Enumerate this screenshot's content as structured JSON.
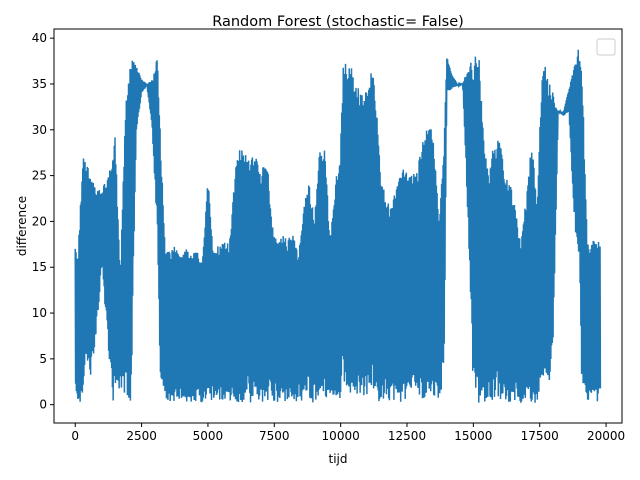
{
  "chart_data": {
    "type": "line",
    "title": "Random Forest (stochastic= False)",
    "xlabel": "tijd",
    "ylabel": "difference",
    "xlim": [
      -800,
      20600
    ],
    "ylim": [
      -2,
      41
    ],
    "xticks": [
      0,
      2500,
      5000,
      7500,
      10000,
      12500,
      15000,
      17500,
      20000
    ],
    "xtick_labels": [
      "0",
      "2500",
      "5000",
      "7500",
      "10000",
      "12500",
      "15000",
      "17500",
      "20000"
    ],
    "yticks": [
      0,
      5,
      10,
      15,
      20,
      25,
      30,
      35,
      40
    ],
    "ytick_labels": [
      "0",
      "5",
      "10",
      "15",
      "20",
      "25",
      "30",
      "35",
      "40"
    ],
    "grid": false,
    "legend": "upper right (empty)",
    "series_color": "#1f77b4",
    "series": [
      {
        "envelope_x": [
          0,
          100,
          300,
          400,
          600,
          800,
          1000,
          1200,
          1400,
          1500,
          1700,
          1900,
          2100,
          2300,
          2500,
          2700,
          2900,
          3100,
          3200,
          3400,
          3600,
          3800,
          4000,
          4200,
          4400,
          4600,
          4800,
          5000,
          5200,
          5400,
          5600,
          5800,
          6000,
          6200,
          6400,
          6600,
          6800,
          7000,
          7200,
          7400,
          7600,
          7800,
          8000,
          8200,
          8400,
          8600,
          8800,
          9000,
          9200,
          9400,
          9600,
          9800,
          10000,
          10100,
          10300,
          10500,
          10700,
          10900,
          11100,
          11300,
          11500,
          11700,
          11900,
          12100,
          12300,
          12500,
          12700,
          12900,
          13100,
          13300,
          13500,
          13700,
          13900,
          14000,
          14200,
          14400,
          14600,
          14800,
          15000,
          15200,
          15400,
          15600,
          15800,
          16000,
          16200,
          16400,
          16600,
          16800,
          17000,
          17200,
          17400,
          17600,
          17800,
          18000,
          18200,
          18400,
          18600,
          18800,
          19000,
          19100,
          19300,
          19500,
          19700,
          19800
        ],
        "envelope_high": [
          17,
          16,
          28.5,
          27,
          25,
          23.5,
          23.5,
          25,
          28,
          30,
          14,
          33,
          38,
          37,
          35.5,
          35,
          35.5,
          38,
          30,
          17,
          17,
          17.5,
          16.5,
          17,
          16.5,
          17,
          16,
          25,
          16.5,
          17.5,
          18,
          17.5,
          25,
          28.5,
          28,
          27.5,
          27,
          26,
          28,
          20.5,
          18,
          18.5,
          18,
          19,
          16.5,
          21.5,
          25,
          20,
          28,
          28.5,
          18,
          24,
          28.5,
          37.5,
          38,
          36,
          34.5,
          33.5,
          36.5,
          35.5,
          26,
          22,
          22,
          24.5,
          26,
          25.5,
          25.5,
          26,
          29,
          31,
          30,
          20,
          29.5,
          38,
          36,
          35,
          35,
          37,
          38,
          38.5,
          28.5,
          25.5,
          29,
          29,
          25.5,
          24,
          21,
          18,
          23,
          29,
          21.5,
          38,
          36,
          34,
          32,
          32,
          34.5,
          37,
          39.5,
          36,
          17.5,
          18,
          18,
          17.5
        ],
        "envelope_low": [
          0.5,
          0.3,
          0.3,
          4,
          3,
          8,
          15,
          8,
          0.2,
          0.3,
          2,
          0.3,
          0.1,
          29.5,
          34,
          34.8,
          30,
          18,
          2,
          0.5,
          0.3,
          0.4,
          0.2,
          0.3,
          0.2,
          0.3,
          0.2,
          0.2,
          0.3,
          0.2,
          0.1,
          0.2,
          0.1,
          0.2,
          0.3,
          0.2,
          0.4,
          0.3,
          0.2,
          0.3,
          0.2,
          0.1,
          0.2,
          0.3,
          0.4,
          0.2,
          0.3,
          0.2,
          0.3,
          0.5,
          0.2,
          0.3,
          0.5,
          3,
          0.2,
          0.3,
          0.1,
          1,
          0.5,
          0.3,
          0.2,
          0.4,
          0.3,
          0.2,
          0.1,
          0.2,
          1,
          0.5,
          0.2,
          0.3,
          0.2,
          0.5,
          3,
          34,
          34.5,
          34.8,
          35,
          20,
          0.2,
          0.1,
          0.1,
          0.3,
          0.4,
          0.2,
          0.3,
          0.2,
          0.3,
          0.1,
          0.5,
          0.2,
          0.1,
          3,
          0.3,
          5,
          32,
          31.5,
          32,
          20,
          14,
          0.2,
          0.3,
          0.2,
          0.2,
          0.5
        ]
      }
    ]
  }
}
